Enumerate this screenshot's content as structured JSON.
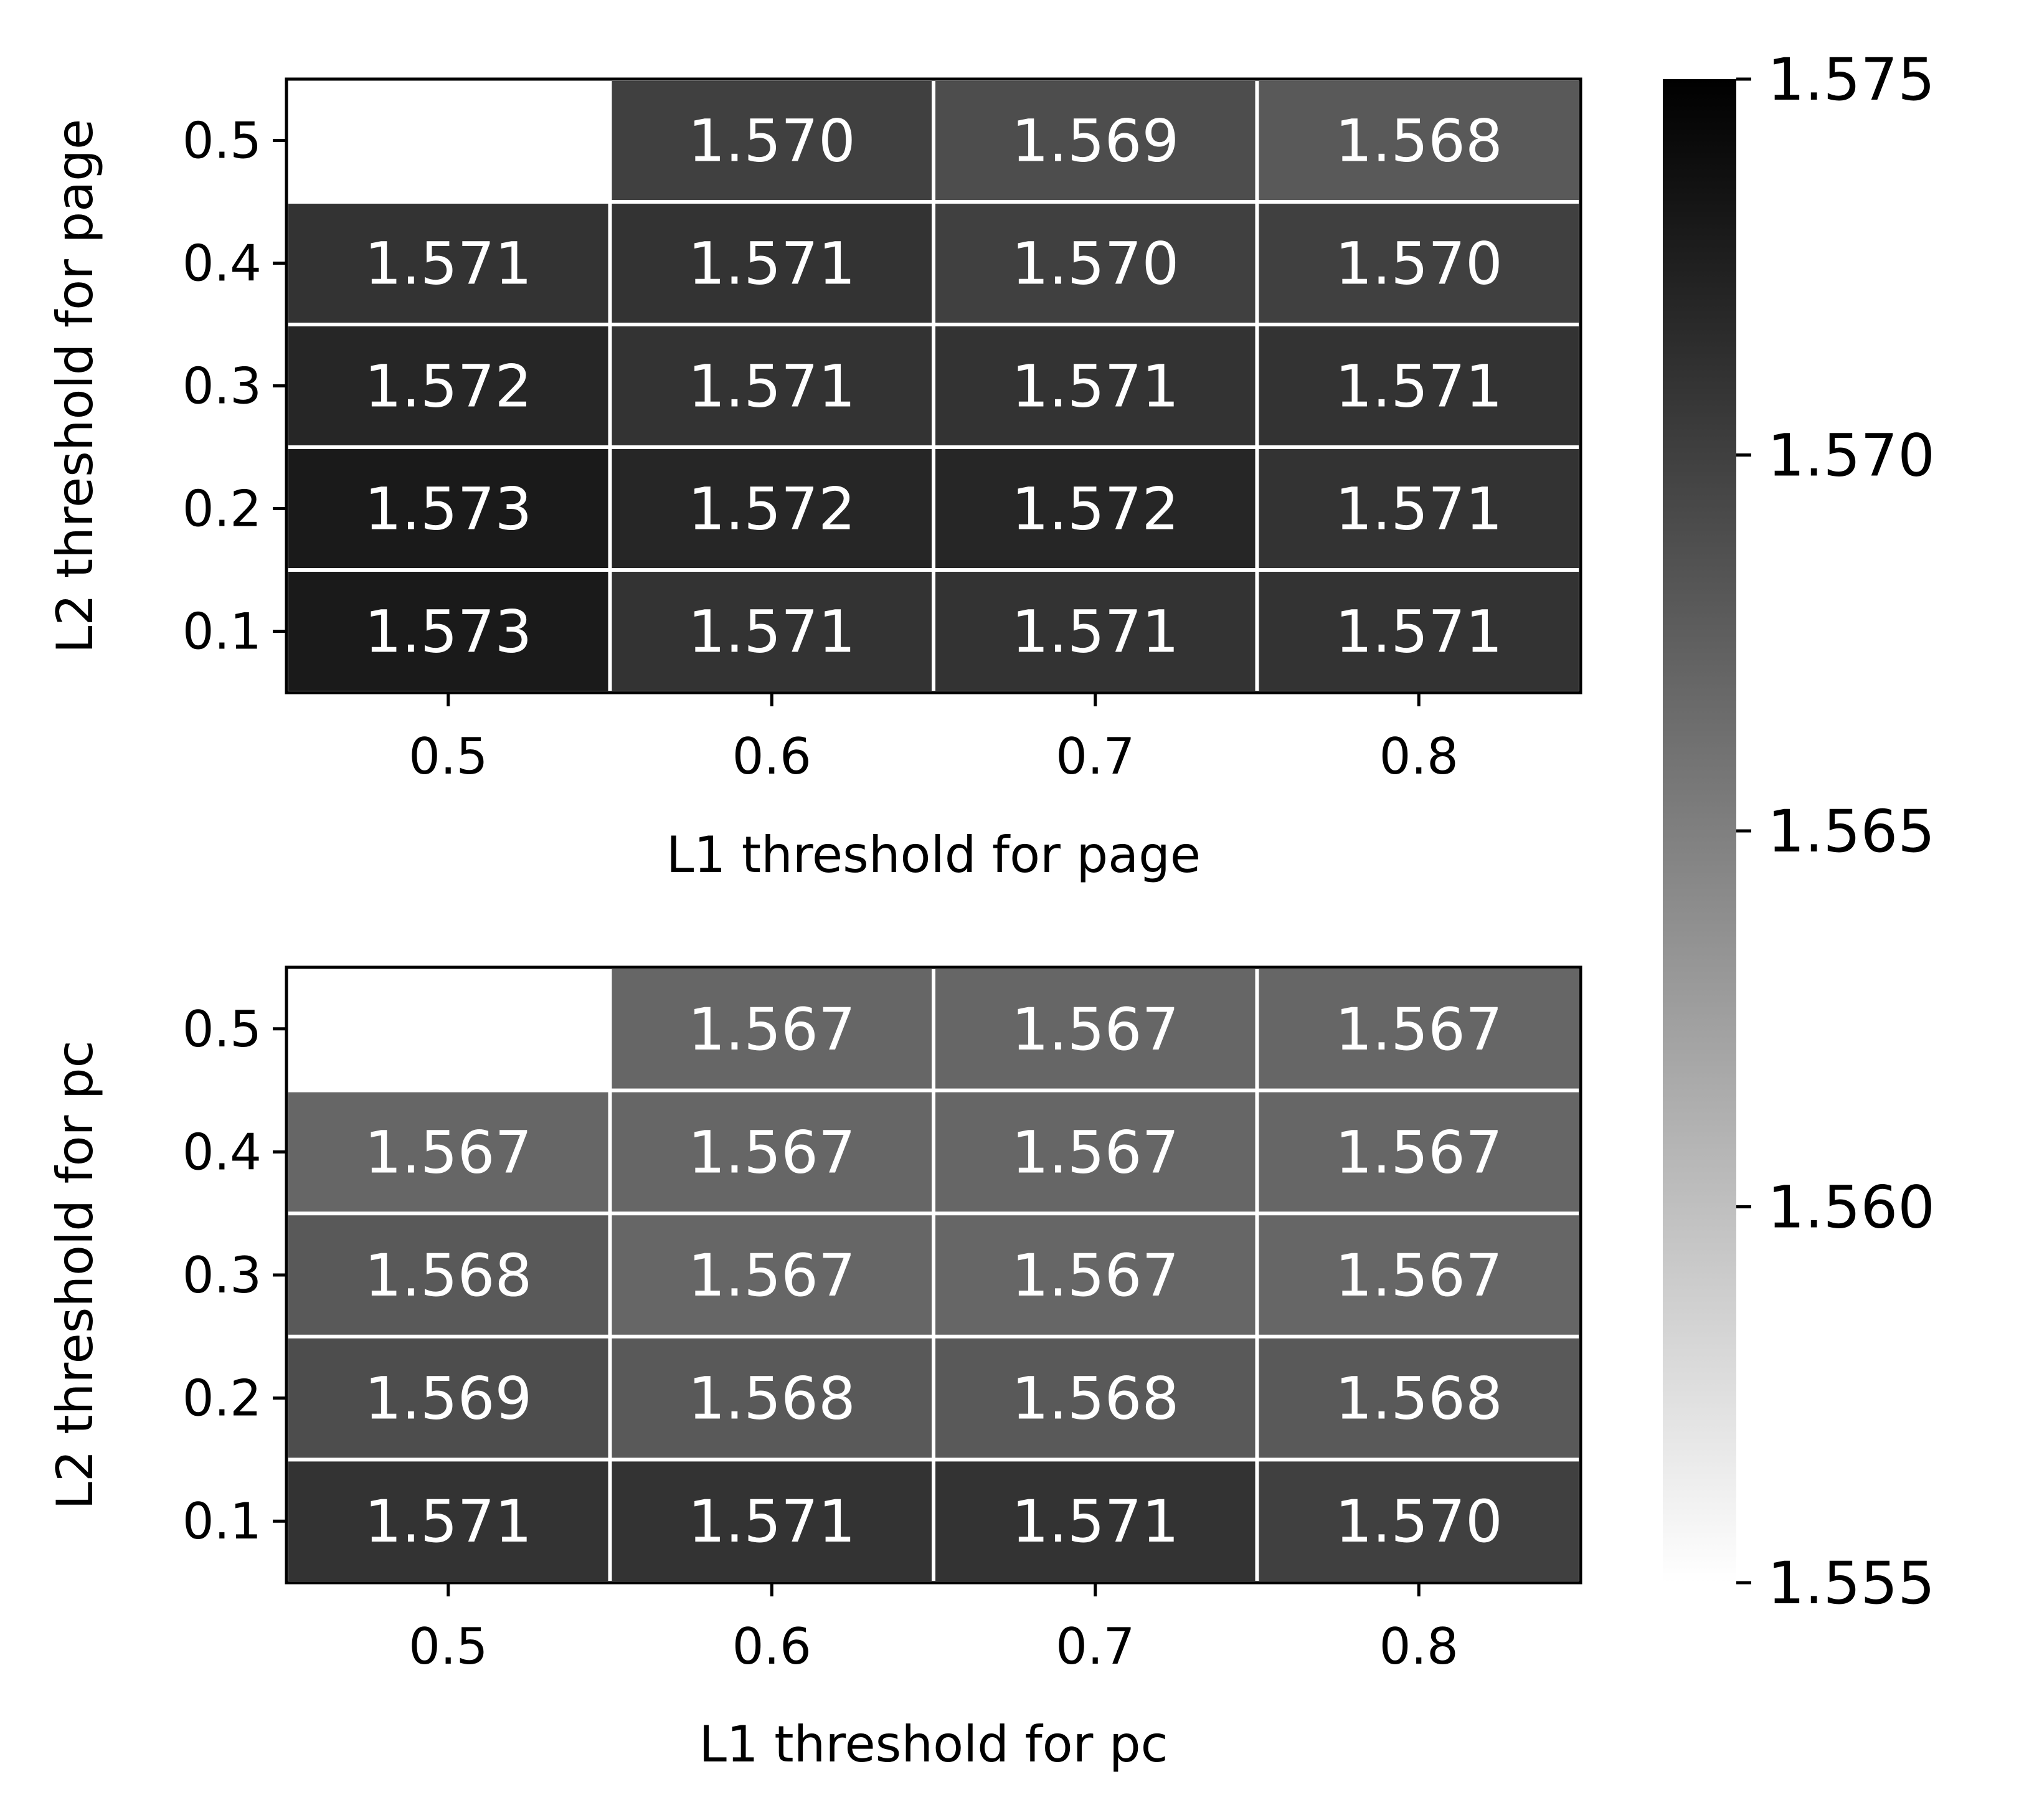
{
  "chart_data": [
    {
      "type": "heatmap",
      "title": "",
      "xlabel": "L1 threshold for page",
      "ylabel": "L2 threshold for page",
      "x": [
        "0.5",
        "0.6",
        "0.7",
        "0.8"
      ],
      "y": [
        "0.1",
        "0.2",
        "0.3",
        "0.4",
        "0.5"
      ],
      "values": [
        [
          1.573,
          1.571,
          1.571,
          1.571
        ],
        [
          1.573,
          1.572,
          1.572,
          1.571
        ],
        [
          1.572,
          1.571,
          1.571,
          1.571
        ],
        [
          1.571,
          1.571,
          1.57,
          1.57
        ],
        [
          null,
          1.57,
          1.569,
          1.568
        ]
      ],
      "labels": [
        [
          "1.573",
          "1.571",
          "1.571",
          "1.571"
        ],
        [
          "1.573",
          "1.572",
          "1.572",
          "1.571"
        ],
        [
          "1.572",
          "1.571",
          "1.571",
          "1.571"
        ],
        [
          "1.571",
          "1.571",
          "1.570",
          "1.570"
        ],
        [
          "",
          "1.570",
          "1.569",
          "1.568"
        ]
      ],
      "grid": false
    },
    {
      "type": "heatmap",
      "title": "",
      "xlabel": "L1 threshold for pc",
      "ylabel": "L2 threshold for pc",
      "x": [
        "0.5",
        "0.6",
        "0.7",
        "0.8"
      ],
      "y": [
        "0.1",
        "0.2",
        "0.3",
        "0.4",
        "0.5"
      ],
      "values": [
        [
          1.571,
          1.571,
          1.571,
          1.57
        ],
        [
          1.569,
          1.568,
          1.568,
          1.568
        ],
        [
          1.568,
          1.567,
          1.567,
          1.567
        ],
        [
          1.567,
          1.567,
          1.567,
          1.567
        ],
        [
          null,
          1.567,
          1.567,
          1.567
        ]
      ],
      "labels": [
        [
          "1.571",
          "1.571",
          "1.571",
          "1.570"
        ],
        [
          "1.569",
          "1.568",
          "1.568",
          "1.568"
        ],
        [
          "1.568",
          "1.567",
          "1.567",
          "1.567"
        ],
        [
          "1.567",
          "1.567",
          "1.567",
          "1.567"
        ],
        [
          "",
          "1.567",
          "1.567",
          "1.567"
        ]
      ],
      "grid": false
    }
  ],
  "colorbar": {
    "min": 1.555,
    "max": 1.575,
    "ticks": [
      "1.575",
      "1.570",
      "1.565",
      "1.560",
      "1.555"
    ],
    "colormap": "Greys",
    "color_low": "#ffffff",
    "color_high": "#000000"
  },
  "colors": {
    "cell_text": "#ffffff",
    "cell_gap": "#ffffff",
    "axes": "#000000"
  }
}
